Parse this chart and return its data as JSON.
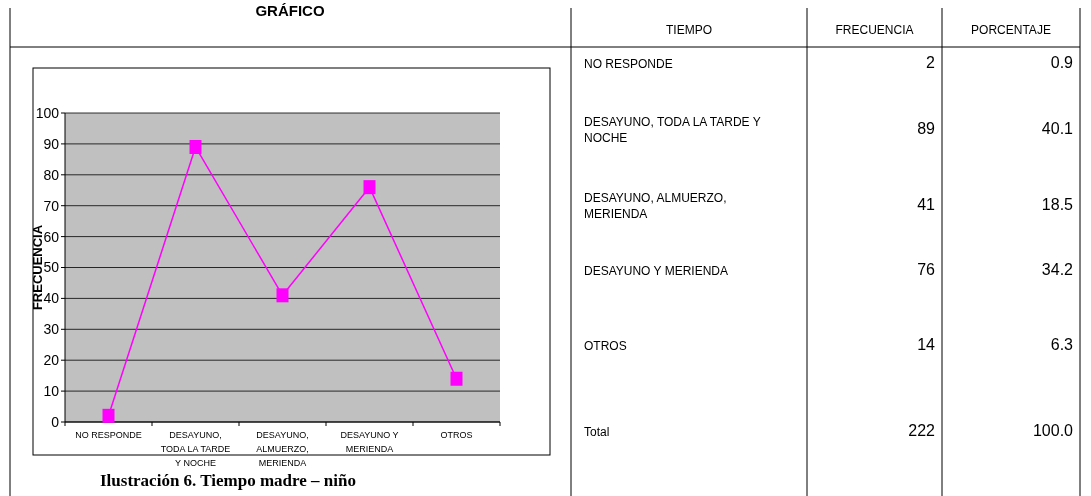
{
  "chart_data": [
    {
      "type": "line",
      "title": "GRÁFICO",
      "ylabel": "FRECUENCIA",
      "categories": [
        "NO RESPONDE",
        "DESAYUNO, TODA LA TARDE Y NOCHE",
        "DESAYUNO, ALMUERZO, MERIENDA",
        "DESAYUNO Y MERIENDA",
        "OTROS"
      ],
      "series": [
        {
          "color": "#ff00ff",
          "values": [
            2,
            89,
            41,
            76,
            14
          ]
        }
      ],
      "ylim": [
        0,
        100
      ],
      "yticks": [
        0,
        10,
        20,
        30,
        40,
        50,
        60,
        70,
        80,
        90,
        100
      ],
      "grid": "y",
      "marker": "square",
      "line_style": "solid",
      "annotations": [
        "Ilustración 6. Tiempo madre – niño"
      ]
    },
    {
      "type": "other",
      "xlabel": "TIEMPO",
      "data_labels": true,
      "categories": [
        "NO RESPONDE",
        "DESAYUNO, TODA LA TARDE Y NOCHE",
        "DESAYUNO, ALMUERZO, MERIENDA",
        "DESAYUNO Y MERIENDA",
        "OTROS",
        "Total"
      ],
      "series": [
        {
          "name": "FRECUENCIA",
          "values": [
            2,
            89,
            41,
            76,
            14,
            222
          ]
        },
        {
          "name": "PORCENTAJE",
          "values": [
            0.9,
            40.1,
            18.5,
            34.2,
            6.3,
            100.0
          ],
          "value_labels": [
            "0.9",
            "40.1",
            "18.5",
            "34.2",
            "6.3",
            "100.0"
          ]
        }
      ]
    }
  ]
}
